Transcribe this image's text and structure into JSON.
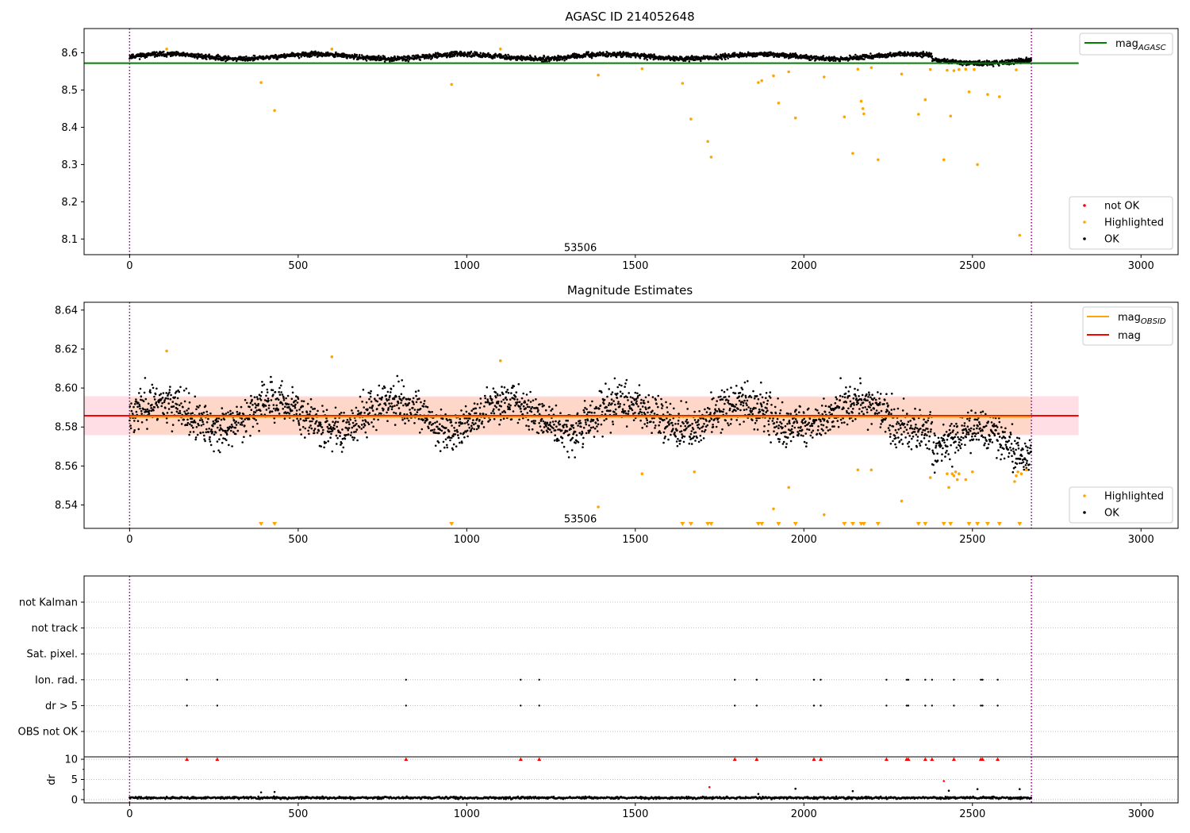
{
  "colors": {
    "ok": "#000000",
    "highlighted": "#ffa500",
    "not_ok": "#ff0000",
    "agasc_line": "#008000",
    "obsid_line": "#ffa500",
    "mag_line": "#ff0000",
    "mag_band": "#ffc0cb",
    "obsid_band": "#ffd2b4",
    "obs_boundary": "#800080",
    "grid": "#b0b0b0"
  },
  "chart_data": [
    {
      "type": "scatter",
      "panel": "agasc",
      "title": "AGASC ID 214052648",
      "xlabel": "",
      "ylabel": "",
      "xlim": [
        -135,
        3110
      ],
      "ylim": [
        8.058,
        8.665
      ],
      "xticks": [
        0,
        500,
        1000,
        1500,
        2000,
        2500,
        3000
      ],
      "yticks": [
        8.1,
        8.2,
        8.3,
        8.4,
        8.5,
        8.6
      ],
      "ytick_labels": [
        "8.1",
        "8.2",
        "8.3",
        "8.4",
        "8.5",
        "8.6"
      ],
      "obs_boundaries": [
        0,
        2675
      ],
      "obsid_annotation": {
        "text": "53506",
        "x": 1337,
        "y": 8.068
      },
      "reference_line": {
        "name": "mag_AGASC",
        "label_base": "mag",
        "label_sub": "AGASC",
        "y": 8.572,
        "x_range": [
          -135,
          2815
        ]
      },
      "ok_band": {
        "center": 8.59,
        "amplitude": 0.012,
        "noise": 0.008,
        "n_points": 2675
      },
      "highlighted_points": [
        [
          110,
          8.61
        ],
        [
          390,
          8.52
        ],
        [
          430,
          8.445
        ],
        [
          600,
          8.61
        ],
        [
          955,
          8.515
        ],
        [
          1100,
          8.61
        ],
        [
          1390,
          8.54
        ],
        [
          1520,
          8.557
        ],
        [
          1640,
          8.518
        ],
        [
          1665,
          8.422
        ],
        [
          1715,
          8.362
        ],
        [
          1725,
          8.32
        ],
        [
          1865,
          8.52
        ],
        [
          1875,
          8.525
        ],
        [
          1910,
          8.538
        ],
        [
          1925,
          8.465
        ],
        [
          1955,
          8.549
        ],
        [
          1975,
          8.425
        ],
        [
          2060,
          8.535
        ],
        [
          2120,
          8.428
        ],
        [
          2145,
          8.33
        ],
        [
          2160,
          8.556
        ],
        [
          2170,
          8.47
        ],
        [
          2175,
          8.45
        ],
        [
          2178,
          8.436
        ],
        [
          2200,
          8.56
        ],
        [
          2220,
          8.313
        ],
        [
          2290,
          8.543
        ],
        [
          2340,
          8.435
        ],
        [
          2360,
          8.474
        ],
        [
          2375,
          8.555
        ],
        [
          2415,
          8.313
        ],
        [
          2425,
          8.553
        ],
        [
          2435,
          8.43
        ],
        [
          2445,
          8.552
        ],
        [
          2460,
          8.555
        ],
        [
          2480,
          8.556
        ],
        [
          2490,
          8.495
        ],
        [
          2505,
          8.555
        ],
        [
          2515,
          8.3
        ],
        [
          2545,
          8.488
        ],
        [
          2580,
          8.482
        ],
        [
          2630,
          8.554
        ],
        [
          2640,
          8.11
        ]
      ],
      "legends": [
        {
          "position": "top-right",
          "entries": [
            {
              "kind": "line",
              "label_base": "mag",
              "label_sub": "AGASC",
              "color": "#008000"
            }
          ]
        },
        {
          "position": "bottom-right",
          "entries": [
            {
              "kind": "marker",
              "label": "not OK",
              "color": "#ff0000"
            },
            {
              "kind": "marker",
              "label": "Highlighted",
              "color": "#ffa500"
            },
            {
              "kind": "marker",
              "label": "OK",
              "color": "#000000"
            }
          ]
        }
      ]
    },
    {
      "type": "scatter",
      "panel": "estimates",
      "title": "Magnitude Estimates",
      "xlabel": "",
      "ylabel": "",
      "xlim": [
        -135,
        3110
      ],
      "ylim": [
        8.528,
        8.644
      ],
      "xticks": [
        0,
        500,
        1000,
        1500,
        2000,
        2500,
        3000
      ],
      "yticks": [
        8.54,
        8.56,
        8.58,
        8.6,
        8.62,
        8.64
      ],
      "ytick_labels": [
        "8.54",
        "8.56",
        "8.58",
        "8.60",
        "8.62",
        "8.64"
      ],
      "obs_boundaries": [
        0,
        2675
      ],
      "obsid_annotation": {
        "text": "53506",
        "x": 1337,
        "y": 8.531
      },
      "mag_line": {
        "y": 8.5858,
        "band": [
          8.5758,
          8.5958
        ],
        "x_range": [
          -135,
          2815
        ]
      },
      "obsid_line": {
        "y": 8.5852,
        "band": [
          8.5762,
          8.5952
        ],
        "x_range": [
          0,
          2675
        ]
      },
      "ok_band": {
        "center": 8.586,
        "amplitude": 0.012,
        "noise": 0.008,
        "n_points": 2675
      },
      "highlighted_points": [
        [
          110,
          8.619
        ],
        [
          600,
          8.616
        ],
        [
          1100,
          8.614
        ],
        [
          1390,
          8.539
        ],
        [
          1520,
          8.556
        ],
        [
          1675,
          8.557
        ],
        [
          1955,
          8.549
        ],
        [
          1910,
          8.538
        ],
        [
          2060,
          8.535
        ],
        [
          2160,
          8.558
        ],
        [
          2200,
          8.558
        ],
        [
          2290,
          8.542
        ],
        [
          2375,
          8.554
        ],
        [
          2425,
          8.556
        ],
        [
          2430,
          8.549
        ],
        [
          2440,
          8.556
        ],
        [
          2445,
          8.555
        ],
        [
          2450,
          8.557
        ],
        [
          2455,
          8.553
        ],
        [
          2460,
          8.556
        ],
        [
          2480,
          8.553
        ],
        [
          2500,
          8.557
        ],
        [
          2625,
          8.552
        ],
        [
          2630,
          8.555
        ],
        [
          2635,
          8.557
        ],
        [
          2645,
          8.556
        ],
        [
          2660,
          8.558
        ]
      ],
      "below_range_markers": [
        390,
        430,
        955,
        1640,
        1665,
        1715,
        1725,
        1865,
        1875,
        1925,
        1975,
        2120,
        2145,
        2170,
        2178,
        2220,
        2340,
        2360,
        2415,
        2435,
        2490,
        2515,
        2545,
        2580,
        2640
      ],
      "legends": [
        {
          "position": "top-right",
          "entries": [
            {
              "kind": "line",
              "label_base": "mag",
              "label_sub": "OBSID",
              "color": "#ffa500"
            },
            {
              "kind": "line",
              "label_base": "mag",
              "label_sub": "",
              "color": "#ff0000"
            }
          ]
        },
        {
          "position": "bottom-right",
          "entries": [
            {
              "kind": "marker",
              "label": "Highlighted",
              "color": "#ffa500"
            },
            {
              "kind": "marker",
              "label": "OK",
              "color": "#000000"
            }
          ]
        }
      ]
    },
    {
      "type": "scatter",
      "panel": "flags",
      "title": "",
      "xlim": [
        -135,
        3110
      ],
      "xticks": [],
      "obs_boundaries": [
        0,
        2675
      ],
      "categories": [
        "not Kalman",
        "not track",
        "Sat. pixel.",
        "Ion. rad.",
        "dr > 5",
        "OBS not OK"
      ],
      "flagged": {
        "Ion. rad.": [
          170,
          260,
          820,
          1160,
          1215,
          1795,
          1860,
          2030,
          2050,
          2245,
          2305,
          2310,
          2360,
          2380,
          2445,
          2525,
          2530,
          2575
        ],
        "dr > 5": [
          170,
          260,
          820,
          1160,
          1215,
          1795,
          1860,
          2030,
          2050,
          2245,
          2305,
          2310,
          2360,
          2380,
          2445,
          2525,
          2530,
          2575
        ]
      }
    },
    {
      "type": "scatter",
      "panel": "dr",
      "title": "",
      "xlabel": "",
      "ylabel": "dr",
      "xlim": [
        -135,
        3110
      ],
      "ylim": [
        -0.8,
        10.6
      ],
      "xticks": [
        0,
        500,
        1000,
        1500,
        2000,
        2500,
        3000
      ],
      "yticks": [
        0,
        5,
        10
      ],
      "ytick_labels": [
        "0",
        "5",
        "10"
      ],
      "obs_boundaries": [
        0,
        2675
      ],
      "ok_band": {
        "center": 0.45,
        "noise": 0.18,
        "n_points": 2675
      },
      "outliers": [
        [
          390,
          1.8
        ],
        [
          430,
          1.9
        ],
        [
          1720,
          3.1
        ],
        [
          1865,
          1.4
        ],
        [
          1975,
          2.7
        ],
        [
          2145,
          2.1
        ],
        [
          2415,
          4.6
        ],
        [
          2430,
          2.2
        ],
        [
          2515,
          2.6
        ],
        [
          2640,
          2.6
        ]
      ],
      "clipped_at_10": [
        170,
        260,
        820,
        1160,
        1215,
        1795,
        1860,
        2030,
        2050,
        2245,
        2305,
        2310,
        2360,
        2380,
        2445,
        2525,
        2530,
        2575
      ]
    }
  ]
}
